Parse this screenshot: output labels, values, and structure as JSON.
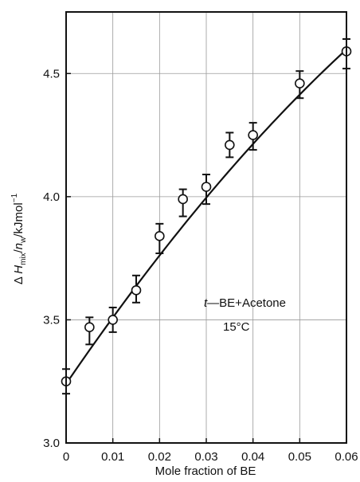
{
  "chart_data": {
    "type": "scatter",
    "xlabel": "Mole fraction of BE",
    "ylabel_parts": {
      "delta": "Δ",
      "H": "H",
      "mix": "mix",
      "slash1": "/",
      "n": "n",
      "w": "w",
      "unit": "/kJmol",
      "exp": "−1"
    },
    "xlim": [
      0,
      0.06
    ],
    "ylim": [
      3.0,
      4.75
    ],
    "xticks": [
      0,
      0.01,
      0.02,
      0.03,
      0.04,
      0.05,
      0.06
    ],
    "xtick_labels": [
      "0",
      "0.01",
      "0.02",
      "0.03",
      "0.04",
      "0.05",
      "0.06"
    ],
    "yticks": [
      3.0,
      3.5,
      4.0,
      4.5
    ],
    "ytick_labels": [
      "3.0",
      "3.5",
      "4.0",
      "4.5"
    ],
    "grid": true,
    "series": [
      {
        "points": [
          {
            "x": 0.0,
            "y": 3.25,
            "err_lo": 0.05,
            "err_hi": 0.05
          },
          {
            "x": 0.005,
            "y": 3.47,
            "err_lo": 0.07,
            "err_hi": 0.04
          },
          {
            "x": 0.01,
            "y": 3.5,
            "err_lo": 0.05,
            "err_hi": 0.05
          },
          {
            "x": 0.015,
            "y": 3.62,
            "err_lo": 0.05,
            "err_hi": 0.06
          },
          {
            "x": 0.02,
            "y": 3.84,
            "err_lo": 0.07,
            "err_hi": 0.05
          },
          {
            "x": 0.025,
            "y": 3.99,
            "err_lo": 0.07,
            "err_hi": 0.04
          },
          {
            "x": 0.03,
            "y": 4.04,
            "err_lo": 0.07,
            "err_hi": 0.05
          },
          {
            "x": 0.035,
            "y": 4.21,
            "err_lo": 0.05,
            "err_hi": 0.05
          },
          {
            "x": 0.04,
            "y": 4.25,
            "err_lo": 0.06,
            "err_hi": 0.05
          },
          {
            "x": 0.05,
            "y": 4.46,
            "err_lo": 0.06,
            "err_hi": 0.05
          },
          {
            "x": 0.06,
            "y": 4.59,
            "err_lo": 0.07,
            "err_hi": 0.05
          }
        ],
        "fit_curve": {
          "a": 3.24,
          "b": 27.77,
          "c": -85.6
        }
      }
    ],
    "annotations": [
      {
        "text_italic": "t",
        "text": "—BE+Acetone"
      },
      {
        "text": "15°C"
      }
    ]
  }
}
